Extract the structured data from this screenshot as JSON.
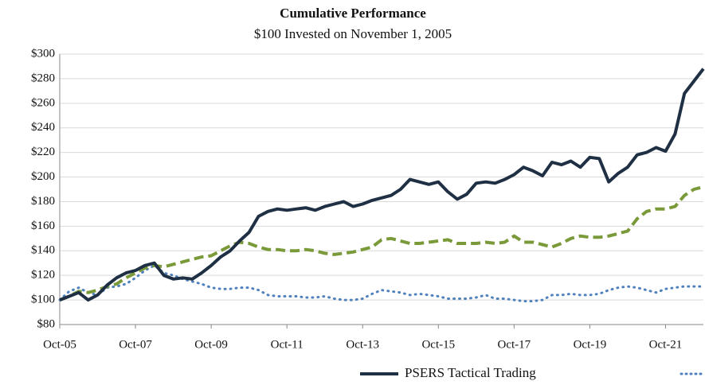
{
  "chart_data": {
    "type": "line",
    "title": "Cumulative Performance",
    "subtitle": "$100 Invested on November 1, 2005",
    "x": [
      2005.75,
      2006,
      2006.25,
      2006.5,
      2006.75,
      2007,
      2007.25,
      2007.5,
      2007.75,
      2008,
      2008.25,
      2008.5,
      2008.75,
      2009,
      2009.25,
      2009.5,
      2009.75,
      2010,
      2010.25,
      2010.5,
      2010.75,
      2011,
      2011.25,
      2011.5,
      2011.75,
      2012,
      2012.25,
      2012.5,
      2012.75,
      2013,
      2013.25,
      2013.5,
      2013.75,
      2014,
      2014.25,
      2014.5,
      2014.75,
      2015,
      2015.25,
      2015.5,
      2015.75,
      2016,
      2016.25,
      2016.5,
      2016.75,
      2017,
      2017.25,
      2017.5,
      2017.75,
      2018,
      2018.25,
      2018.5,
      2018.75,
      2019,
      2019.25,
      2019.5,
      2019.75,
      2020,
      2020.25,
      2020.5,
      2020.75,
      2021,
      2021.25,
      2021.5,
      2021.75,
      2022,
      2022.25,
      2022.5,
      2022.75
    ],
    "series": [
      {
        "name": "PSERS Tactical Trading",
        "color": "#1f3044",
        "style": "solid",
        "values": [
          100,
          103,
          106,
          100,
          104,
          112,
          118,
          122,
          124,
          128,
          130,
          120,
          117,
          118,
          117,
          122,
          128,
          135,
          140,
          148,
          155,
          168,
          172,
          174,
          173,
          174,
          175,
          173,
          176,
          178,
          180,
          176,
          178,
          181,
          183,
          185,
          190,
          198,
          196,
          194,
          196,
          188,
          182,
          186,
          195,
          196,
          195,
          198,
          202,
          208,
          205,
          201,
          212,
          210,
          213,
          208,
          216,
          215,
          196,
          203,
          208,
          218,
          220,
          224,
          221,
          235,
          268,
          278,
          288
        ]
      },
      {
        "color": "#7a9a3a",
        "style": "dashed",
        "values": [
          100,
          103,
          107,
          106,
          108,
          111,
          113,
          118,
          122,
          126,
          128,
          127,
          129,
          131,
          133,
          135,
          136,
          140,
          144,
          147,
          146,
          143,
          141,
          141,
          140,
          140,
          141,
          140,
          138,
          137,
          138,
          139,
          141,
          143,
          149,
          150,
          148,
          146,
          146,
          147,
          148,
          149,
          146,
          146,
          146,
          147,
          146,
          147,
          152,
          147,
          147,
          145,
          143,
          146,
          150,
          152,
          151,
          151,
          152,
          154,
          156,
          166,
          172,
          174,
          174,
          176,
          185,
          190,
          192
        ]
      },
      {
        "color": "#4f81bd",
        "style": "dotted",
        "values": [
          100,
          107,
          110,
          106,
          104,
          110,
          111,
          113,
          118,
          124,
          128,
          122,
          120,
          117,
          115,
          113,
          110,
          109,
          109,
          110,
          110,
          108,
          104,
          103,
          103,
          103,
          102,
          102,
          103,
          101,
          100,
          100,
          101,
          105,
          108,
          107,
          106,
          104,
          105,
          104,
          103,
          101,
          101,
          101,
          102,
          104,
          101,
          101,
          100,
          99,
          99,
          100,
          104,
          104,
          105,
          104,
          104,
          105,
          108,
          110,
          111,
          110,
          108,
          106,
          109,
          110,
          111,
          111,
          111
        ]
      }
    ],
    "xlim": [
      2005.75,
      2022.75
    ],
    "xticks": [
      {
        "value": 2005.75,
        "label": "Oct-05"
      },
      {
        "value": 2007.75,
        "label": "Oct-07"
      },
      {
        "value": 2009.75,
        "label": "Oct-09"
      },
      {
        "value": 2011.75,
        "label": "Oct-11"
      },
      {
        "value": 2013.75,
        "label": "Oct-13"
      },
      {
        "value": 2015.75,
        "label": "Oct-15"
      },
      {
        "value": 2017.75,
        "label": "Oct-17"
      },
      {
        "value": 2019.75,
        "label": "Oct-19"
      },
      {
        "value": 2021.75,
        "label": "Oct-21"
      }
    ],
    "ylim": [
      80,
      300
    ],
    "yticks": [
      {
        "value": 80,
        "label": "$80"
      },
      {
        "value": 100,
        "label": "$100"
      },
      {
        "value": 120,
        "label": "$120"
      },
      {
        "value": 140,
        "label": "$140"
      },
      {
        "value": 160,
        "label": "$160"
      },
      {
        "value": 180,
        "label": "$180"
      },
      {
        "value": 200,
        "label": "$200"
      },
      {
        "value": 220,
        "label": "$220"
      },
      {
        "value": 240,
        "label": "$240"
      },
      {
        "value": 260,
        "label": "$260"
      },
      {
        "value": 280,
        "label": "$280"
      },
      {
        "value": 300,
        "label": "$300"
      }
    ],
    "grid": true
  }
}
